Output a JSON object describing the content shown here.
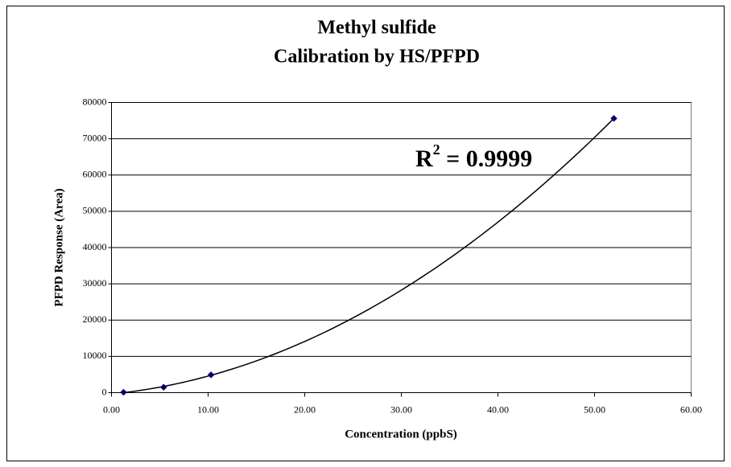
{
  "chart_data": {
    "type": "scatter",
    "title": [
      "Methyl sulfide",
      "Calibration by HS/PFPD"
    ],
    "x_label": "Concentration (ppbS)",
    "y_label": "PFPD Response (Area)",
    "annotation": {
      "base": "R",
      "sup": "2",
      "rest": " = 0.9999"
    },
    "trendline": "polynomial",
    "series": [
      {
        "name": "Methyl sulfide",
        "color": "#000066",
        "x": [
          1.25,
          5.4,
          10.3,
          52.0
        ],
        "values": [
          100,
          1500,
          4900,
          75600
        ]
      }
    ],
    "xlim": [
      0,
      60
    ],
    "xticks": [
      {
        "value": 0,
        "label": "0.00"
      },
      {
        "value": 10,
        "label": "10.00"
      },
      {
        "value": 20,
        "label": "20.00"
      },
      {
        "value": 30,
        "label": "30.00"
      },
      {
        "value": 40,
        "label": "40.00"
      },
      {
        "value": 50,
        "label": "50.00"
      },
      {
        "value": 60,
        "label": "60.00"
      }
    ],
    "ylim": [
      0,
      80000
    ],
    "yticks": [
      0,
      10000,
      20000,
      30000,
      40000,
      50000,
      60000,
      70000,
      80000
    ],
    "grid": true
  }
}
